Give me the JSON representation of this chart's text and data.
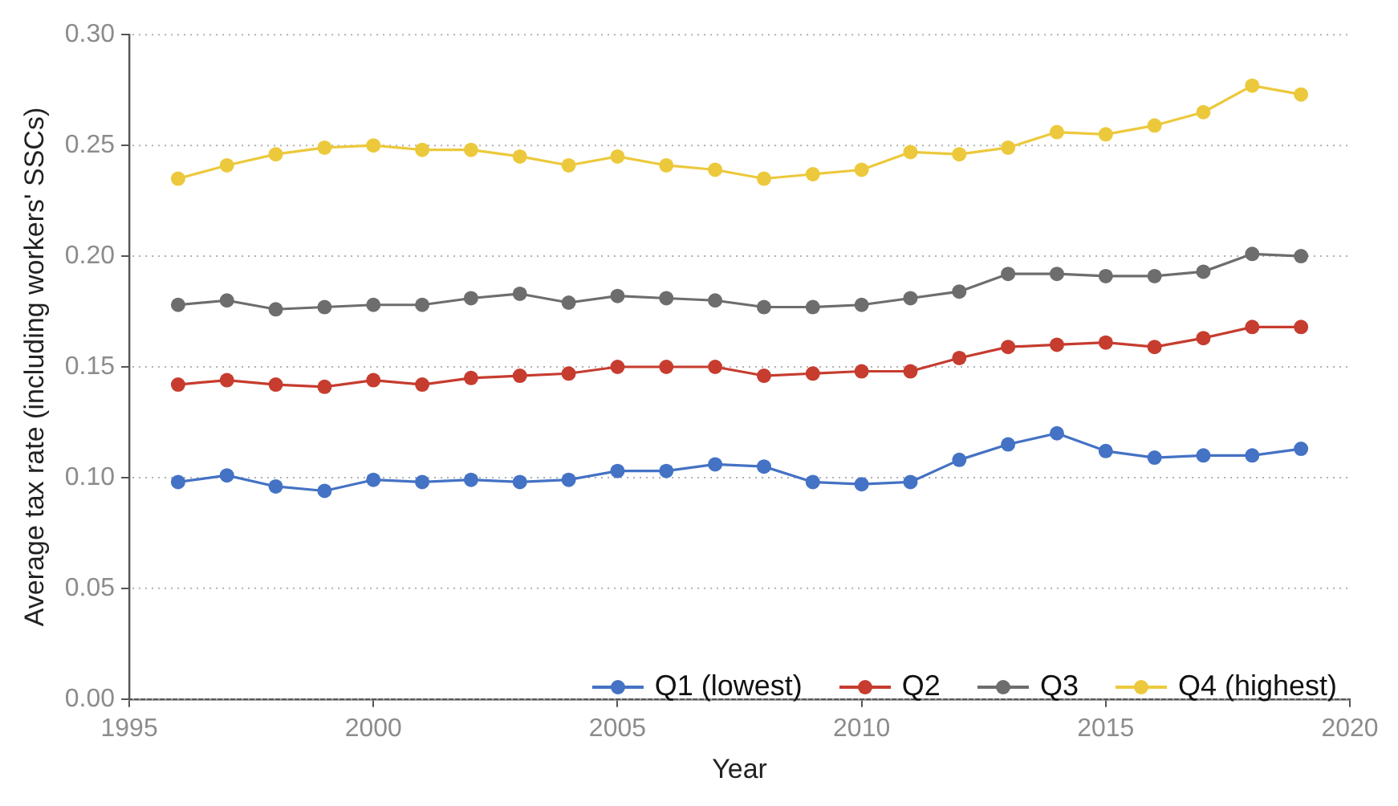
{
  "chart_data": {
    "type": "line",
    "xlabel": "Year",
    "ylabel": "Average tax rate (including workers' SSCs)",
    "x": [
      1996,
      1997,
      1998,
      1999,
      2000,
      2001,
      2002,
      2003,
      2004,
      2005,
      2006,
      2007,
      2008,
      2009,
      2010,
      2011,
      2012,
      2013,
      2014,
      2015,
      2016,
      2017,
      2018,
      2019
    ],
    "series": [
      {
        "name": "Q1 (lowest)",
        "color": "#4472c4",
        "values": [
          0.098,
          0.101,
          0.096,
          0.094,
          0.099,
          0.098,
          0.099,
          0.098,
          0.099,
          0.103,
          0.103,
          0.106,
          0.105,
          0.098,
          0.097,
          0.098,
          0.108,
          0.115,
          0.12,
          0.112,
          0.109,
          0.11,
          0.11,
          0.113
        ]
      },
      {
        "name": "Q2",
        "color": "#c63c2f",
        "values": [
          0.142,
          0.144,
          0.142,
          0.141,
          0.144,
          0.142,
          0.145,
          0.146,
          0.147,
          0.15,
          0.15,
          0.15,
          0.146,
          0.147,
          0.148,
          0.148,
          0.154,
          0.159,
          0.16,
          0.161,
          0.159,
          0.163,
          0.168,
          0.168
        ]
      },
      {
        "name": "Q3",
        "color": "#6d6d6d",
        "values": [
          0.178,
          0.18,
          0.176,
          0.177,
          0.178,
          0.178,
          0.181,
          0.183,
          0.179,
          0.182,
          0.181,
          0.18,
          0.177,
          0.177,
          0.178,
          0.181,
          0.184,
          0.192,
          0.192,
          0.191,
          0.191,
          0.193,
          0.201,
          0.2
        ]
      },
      {
        "name": "Q4 (highest)",
        "color": "#ecc93c",
        "values": [
          0.235,
          0.241,
          0.246,
          0.249,
          0.25,
          0.248,
          0.248,
          0.245,
          0.241,
          0.245,
          0.241,
          0.239,
          0.235,
          0.237,
          0.239,
          0.247,
          0.246,
          0.249,
          0.256,
          0.255,
          0.259,
          0.265,
          0.277,
          0.273
        ]
      }
    ],
    "xlim": [
      1995,
      2020
    ],
    "xticks": [
      1995,
      2000,
      2005,
      2010,
      2015,
      2020
    ],
    "ylim": [
      0,
      0.3
    ],
    "yticks": [
      {
        "value": 0,
        "label": "0.00"
      },
      {
        "value": 0.05,
        "label": "0.05"
      },
      {
        "value": 0.1,
        "label": "0.10"
      },
      {
        "value": 0.15,
        "label": "0.15"
      },
      {
        "value": 0.2,
        "label": "0.20"
      },
      {
        "value": 0.25,
        "label": "0.25"
      },
      {
        "value": 0.3,
        "label": "0.30"
      }
    ],
    "grid": "y",
    "legend": "bottom right",
    "marker": "circle",
    "line_style": "solid"
  }
}
